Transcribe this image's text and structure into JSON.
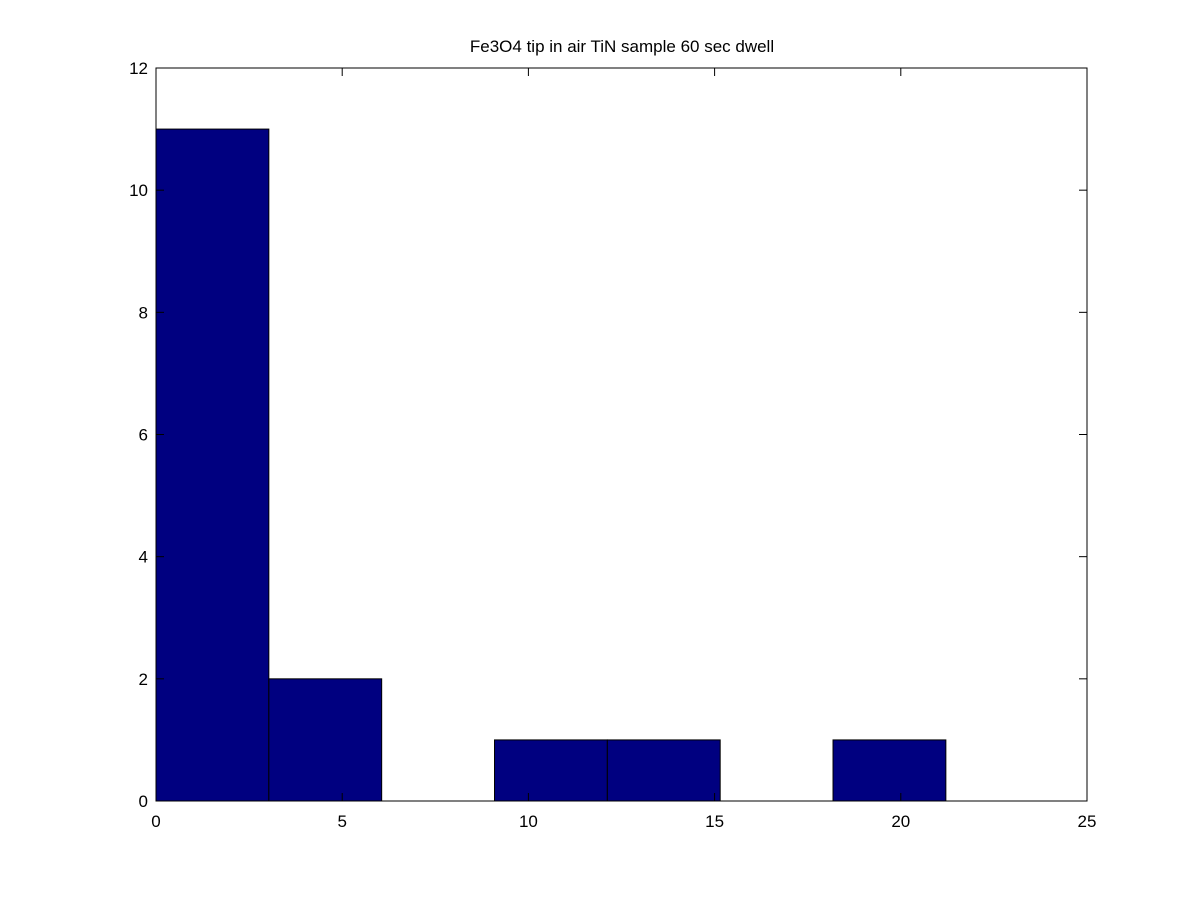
{
  "chart_data": {
    "type": "bar",
    "title": "Fe3O4 tip in air TiN sample 60 sec dwell",
    "xlabel": "",
    "ylabel": "",
    "xlim": [
      0,
      25
    ],
    "ylim": [
      0,
      12
    ],
    "grid": false,
    "legend": "none",
    "bar_color": "#000080",
    "edge_color": "#000000",
    "x_ticks": [
      {
        "value": 0,
        "label": "0"
      },
      {
        "value": 5,
        "label": "5"
      },
      {
        "value": 10,
        "label": "10"
      },
      {
        "value": 15,
        "label": "15"
      },
      {
        "value": 20,
        "label": "20"
      },
      {
        "value": 25,
        "label": "25"
      }
    ],
    "y_ticks": [
      {
        "value": 0,
        "label": "0"
      },
      {
        "value": 2,
        "label": "2"
      },
      {
        "value": 4,
        "label": "4"
      },
      {
        "value": 6,
        "label": "6"
      },
      {
        "value": 8,
        "label": "8"
      },
      {
        "value": 10,
        "label": "10"
      },
      {
        "value": 12,
        "label": "12"
      }
    ],
    "bins": [
      {
        "left": 0.0,
        "right": 3.03,
        "count": 11
      },
      {
        "left": 3.03,
        "right": 6.06,
        "count": 2
      },
      {
        "left": 6.06,
        "right": 9.09,
        "count": 0
      },
      {
        "left": 9.09,
        "right": 12.12,
        "count": 1
      },
      {
        "left": 12.12,
        "right": 15.15,
        "count": 1
      },
      {
        "left": 15.15,
        "right": 18.18,
        "count": 0
      },
      {
        "left": 18.18,
        "right": 21.21,
        "count": 1
      }
    ]
  }
}
